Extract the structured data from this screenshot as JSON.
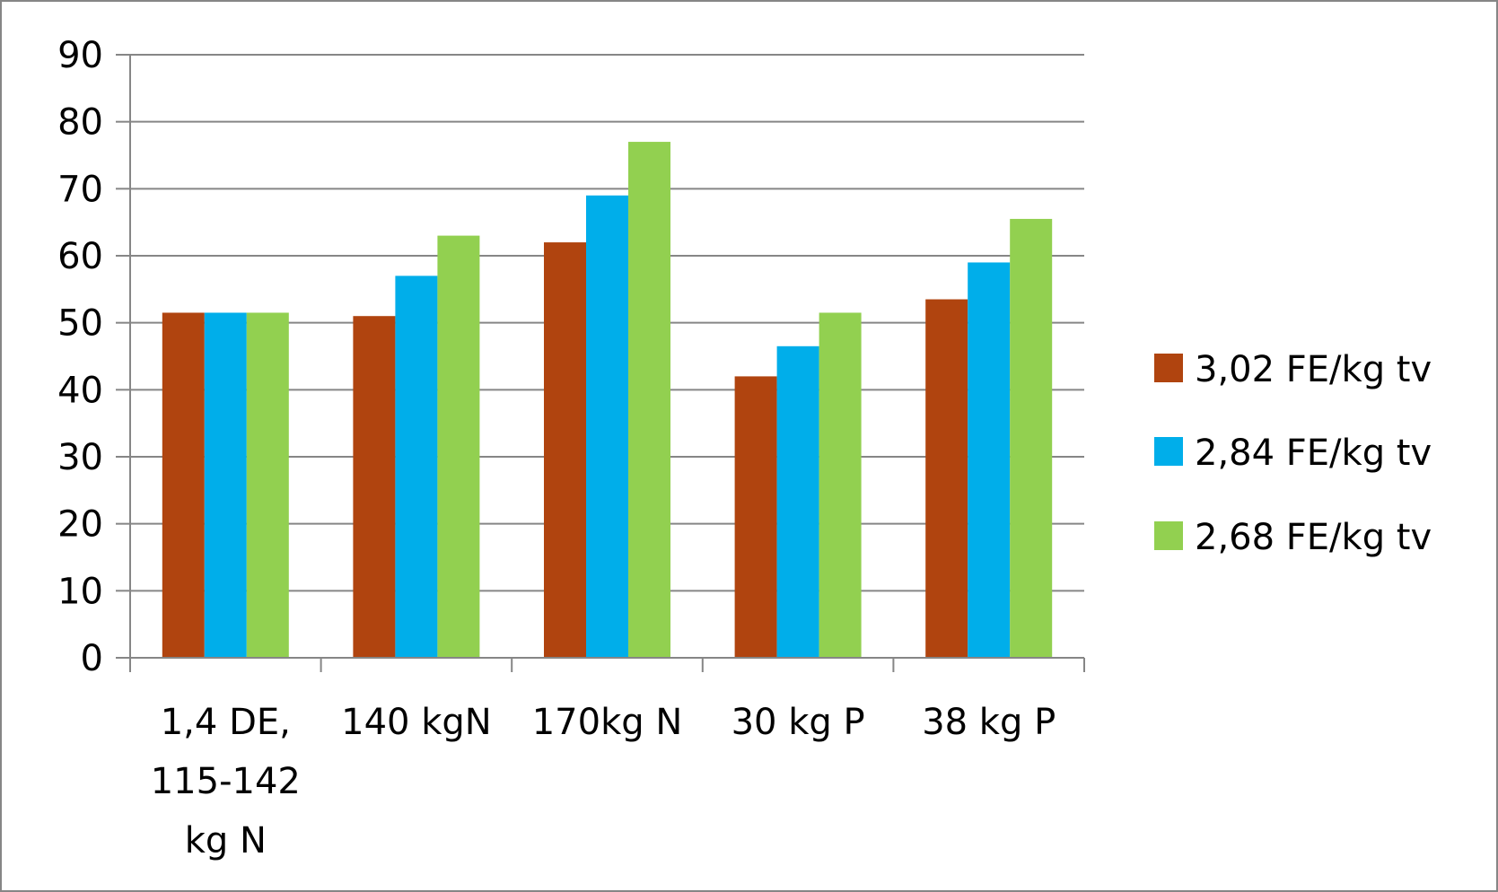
{
  "chart_data": {
    "type": "bar",
    "categories": [
      [
        "1,4 DE,",
        "115-142",
        "kg N"
      ],
      [
        "140 kgN"
      ],
      [
        "170kg N"
      ],
      [
        "30 kg P"
      ],
      [
        "38 kg P"
      ]
    ],
    "series": [
      {
        "name": "3,02 FE/kg tv",
        "color": "#B0440F",
        "values": [
          51.5,
          51,
          62,
          42,
          53.5
        ]
      },
      {
        "name": "2,84 FE/kg tv",
        "color": "#00AEEA",
        "values": [
          51.5,
          57,
          69,
          46.5,
          59
        ]
      },
      {
        "name": "2,68 FE/kg tv",
        "color": "#92D050",
        "values": [
          51.5,
          63,
          77,
          51.5,
          65.5
        ]
      }
    ],
    "ylim": [
      0,
      90
    ],
    "yticks": [
      0,
      10,
      20,
      30,
      40,
      50,
      60,
      70,
      80,
      90
    ],
    "grid": true,
    "legend_position": "right",
    "title": "",
    "xlabel": "",
    "ylabel": ""
  }
}
